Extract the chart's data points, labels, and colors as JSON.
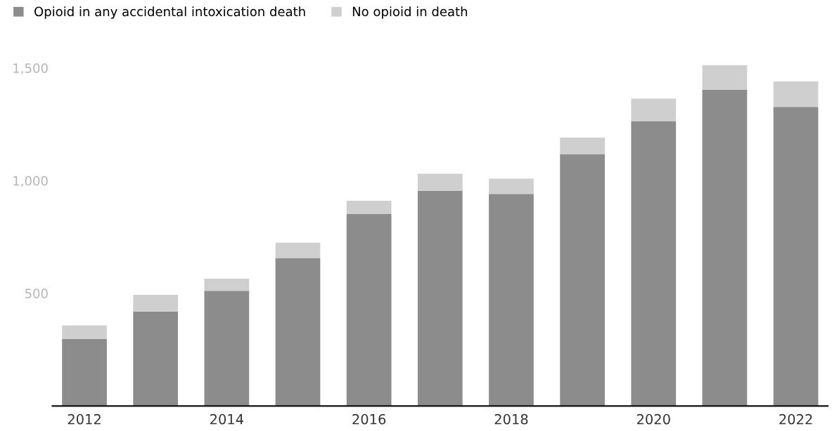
{
  "chart_data": {
    "type": "bar",
    "stacked": true,
    "categories": [
      "2012",
      null,
      "2014",
      null,
      "2016",
      null,
      "2018",
      null,
      "2020",
      null,
      "2022"
    ],
    "series": [
      {
        "name": "Opioid in any accidental intoxication death",
        "color": "#8c8c8c",
        "values": [
          298,
          419,
          511,
          657,
          853,
          955,
          941,
          1118,
          1264,
          1403,
          1327
        ]
      },
      {
        "name": "No opioid in death",
        "color": "#cfcfcf",
        "values": [
          60,
          74,
          54,
          68,
          58,
          76,
          68,
          73,
          100,
          109,
          113
        ]
      }
    ],
    "ylim": [
      0,
      1530
    ],
    "yticks": [
      {
        "value": 500,
        "label": "500"
      },
      {
        "value": 1000,
        "label": "1,000"
      },
      {
        "value": 1500,
        "label": "1,500"
      }
    ],
    "grid": false,
    "legend": "top left"
  }
}
